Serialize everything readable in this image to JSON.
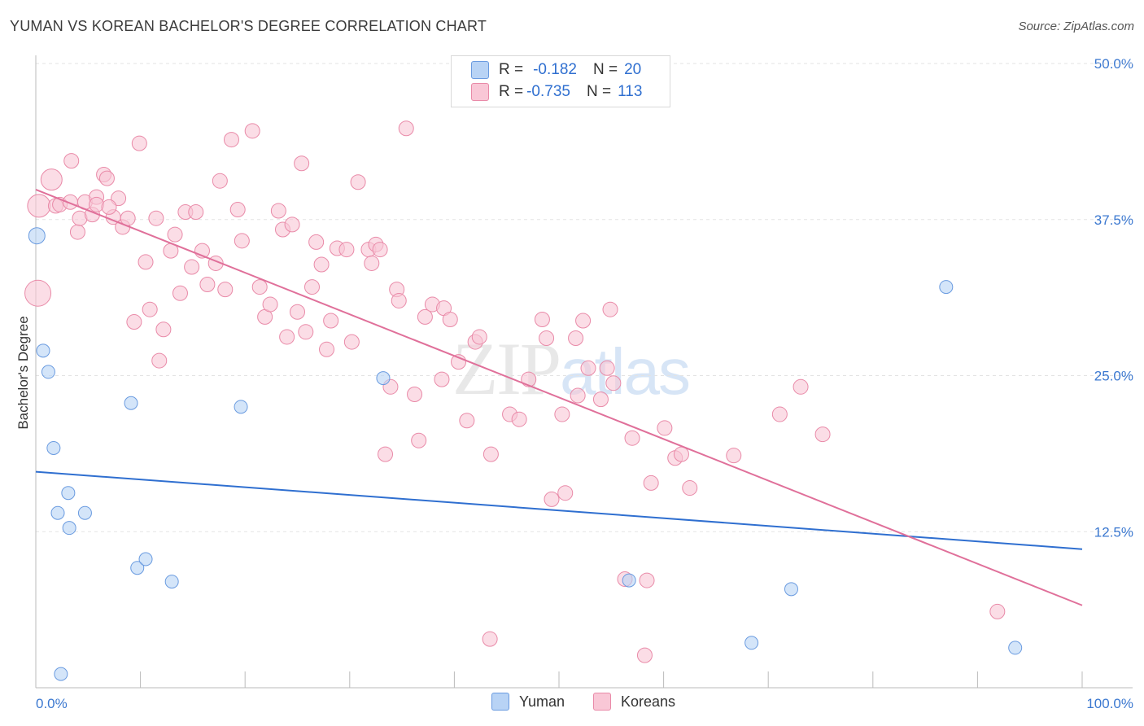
{
  "title": "YUMAN VS KOREAN BACHELOR'S DEGREE CORRELATION CHART",
  "source": "Source: ZipAtlas.com",
  "watermark": {
    "zip": "ZIP",
    "atlas": "atlas"
  },
  "legend_top": [
    {
      "r_label": "R =",
      "r_value": "-0.182",
      "n_label": "N =",
      "n_value": "20",
      "color": "#b8d3f5",
      "border": "#6a9be0"
    },
    {
      "r_label": "R =",
      "r_value": "-0.735",
      "n_label": "N =",
      "n_value": "113",
      "color": "#f9c7d6",
      "border": "#e98aa8"
    }
  ],
  "legend_bottom": [
    {
      "label": "Yuman",
      "color": "#b8d3f5",
      "border": "#6a9be0"
    },
    {
      "label": "Koreans",
      "color": "#f9c7d6",
      "border": "#e98aa8"
    }
  ],
  "chart_data": {
    "type": "scatter",
    "title": "YUMAN VS KOREAN BACHELOR'S DEGREE CORRELATION CHART",
    "xlabel": "",
    "ylabel": "Bachelor's Degree",
    "xlim": [
      0,
      100
    ],
    "ylim": [
      0,
      50
    ],
    "x_tick_labels": [
      "0.0%",
      "100.0%"
    ],
    "y_ticks": [
      12.5,
      25.0,
      37.5,
      50.0
    ],
    "y_tick_labels": [
      "12.5%",
      "25.0%",
      "37.5%",
      "50.0%"
    ],
    "grid": true,
    "legend_position": "top-center",
    "series": [
      {
        "name": "Yuman",
        "color": "#6a9be0",
        "fill": "#b8d3f5",
        "trend": {
          "x": [
            0,
            100
          ],
          "y": [
            17.3,
            11.1
          ],
          "color": "#2f6fd0"
        },
        "points": [
          [
            0.1,
            36.2,
            10
          ],
          [
            0.7,
            27.0,
            8
          ],
          [
            1.2,
            25.3,
            8
          ],
          [
            1.7,
            19.2,
            8
          ],
          [
            2.1,
            14.0,
            8
          ],
          [
            3.1,
            15.6,
            8
          ],
          [
            3.2,
            12.8,
            8
          ],
          [
            4.7,
            14.0,
            8
          ],
          [
            9.1,
            22.8,
            8
          ],
          [
            9.7,
            9.6,
            8
          ],
          [
            10.5,
            10.3,
            8
          ],
          [
            13.0,
            8.5,
            8
          ],
          [
            19.6,
            22.5,
            8
          ],
          [
            33.2,
            24.8,
            8
          ],
          [
            56.7,
            8.6,
            8
          ],
          [
            68.4,
            3.6,
            8
          ],
          [
            72.2,
            7.9,
            8
          ],
          [
            87.0,
            32.1,
            8
          ],
          [
            93.6,
            3.2,
            8
          ],
          [
            2.4,
            1.1,
            8
          ]
        ]
      },
      {
        "name": "Koreans",
        "color": "#e98aa8",
        "fill": "#f9c7d6",
        "trend": {
          "x": [
            0,
            100
          ],
          "y": [
            39.9,
            6.6
          ],
          "color": "#e0709a"
        },
        "points": [
          [
            0.3,
            38.6,
            14
          ],
          [
            1.5,
            40.7,
            13
          ],
          [
            0.2,
            31.6,
            16
          ],
          [
            1.9,
            38.6,
            9
          ],
          [
            2.3,
            38.7,
            9
          ],
          [
            3.3,
            38.9,
            9
          ],
          [
            3.4,
            42.2,
            9
          ],
          [
            4.0,
            36.5,
            9
          ],
          [
            4.2,
            37.6,
            9
          ],
          [
            4.7,
            38.9,
            9
          ],
          [
            5.4,
            37.9,
            9
          ],
          [
            5.8,
            39.3,
            9
          ],
          [
            6.5,
            41.1,
            9
          ],
          [
            6.8,
            40.8,
            9
          ],
          [
            7.4,
            37.7,
            9
          ],
          [
            7.9,
            39.2,
            9
          ],
          [
            8.3,
            36.9,
            9
          ],
          [
            8.8,
            37.6,
            9
          ],
          [
            9.4,
            29.3,
            9
          ],
          [
            9.9,
            43.6,
            9
          ],
          [
            10.5,
            34.1,
            9
          ],
          [
            10.9,
            30.3,
            9
          ],
          [
            11.5,
            37.6,
            9
          ],
          [
            11.8,
            26.2,
            9
          ],
          [
            12.2,
            28.7,
            9
          ],
          [
            12.9,
            35.0,
            9
          ],
          [
            13.3,
            36.3,
            9
          ],
          [
            13.8,
            31.6,
            9
          ],
          [
            14.3,
            38.1,
            9
          ],
          [
            14.9,
            33.7,
            9
          ],
          [
            15.3,
            38.1,
            9
          ],
          [
            15.9,
            35.0,
            9
          ],
          [
            16.4,
            32.3,
            9
          ],
          [
            17.2,
            34.0,
            9
          ],
          [
            17.6,
            40.6,
            9
          ],
          [
            18.1,
            31.9,
            9
          ],
          [
            18.7,
            43.9,
            9
          ],
          [
            19.3,
            38.3,
            9
          ],
          [
            19.7,
            35.8,
            9
          ],
          [
            20.7,
            44.6,
            9
          ],
          [
            21.4,
            32.1,
            9
          ],
          [
            21.9,
            29.7,
            9
          ],
          [
            22.4,
            30.7,
            9
          ],
          [
            23.2,
            38.2,
            9
          ],
          [
            23.6,
            36.7,
            9
          ],
          [
            24.0,
            28.1,
            9
          ],
          [
            24.5,
            37.1,
            9
          ],
          [
            25.0,
            30.1,
            9
          ],
          [
            25.4,
            42.0,
            9
          ],
          [
            25.8,
            28.5,
            9
          ],
          [
            26.4,
            32.1,
            9
          ],
          [
            26.8,
            35.7,
            9
          ],
          [
            27.3,
            33.9,
            9
          ],
          [
            27.8,
            27.1,
            9
          ],
          [
            28.2,
            29.4,
            9
          ],
          [
            28.8,
            35.2,
            9
          ],
          [
            29.7,
            35.1,
            9
          ],
          [
            30.2,
            27.7,
            9
          ],
          [
            30.8,
            40.5,
            9
          ],
          [
            31.8,
            35.1,
            9
          ],
          [
            32.1,
            34.0,
            9
          ],
          [
            32.5,
            35.5,
            9
          ],
          [
            32.9,
            35.1,
            9
          ],
          [
            33.4,
            18.7,
            9
          ],
          [
            33.9,
            24.1,
            9
          ],
          [
            34.5,
            31.9,
            9
          ],
          [
            34.7,
            31.0,
            9
          ],
          [
            35.4,
            44.8,
            9
          ],
          [
            36.2,
            23.5,
            9
          ],
          [
            36.6,
            19.8,
            9
          ],
          [
            37.2,
            29.7,
            9
          ],
          [
            37.9,
            30.7,
            9
          ],
          [
            38.8,
            24.7,
            9
          ],
          [
            39.0,
            30.4,
            9
          ],
          [
            39.6,
            29.5,
            9
          ],
          [
            40.4,
            26.1,
            9
          ],
          [
            41.2,
            21.4,
            9
          ],
          [
            42.0,
            27.7,
            9
          ],
          [
            42.4,
            28.1,
            9
          ],
          [
            43.5,
            18.7,
            9
          ],
          [
            43.4,
            3.9,
            9
          ],
          [
            45.3,
            21.9,
            9
          ],
          [
            46.2,
            21.5,
            9
          ],
          [
            47.1,
            24.7,
            9
          ],
          [
            48.4,
            29.5,
            9
          ],
          [
            48.8,
            28.0,
            9
          ],
          [
            49.3,
            15.1,
            9
          ],
          [
            50.3,
            21.9,
            9
          ],
          [
            50.6,
            15.6,
            9
          ],
          [
            51.6,
            28.0,
            9
          ],
          [
            51.8,
            23.4,
            9
          ],
          [
            52.3,
            29.4,
            9
          ],
          [
            52.8,
            25.6,
            9
          ],
          [
            54.0,
            23.1,
            9
          ],
          [
            54.6,
            25.6,
            9
          ],
          [
            54.9,
            30.3,
            9
          ],
          [
            55.2,
            24.4,
            9
          ],
          [
            56.3,
            8.7,
            9
          ],
          [
            57.0,
            20.0,
            9
          ],
          [
            58.2,
            2.6,
            9
          ],
          [
            58.4,
            8.6,
            9
          ],
          [
            58.8,
            16.4,
            9
          ],
          [
            60.1,
            20.8,
            9
          ],
          [
            61.1,
            18.4,
            9
          ],
          [
            61.7,
            18.7,
            9
          ],
          [
            62.5,
            16.0,
            9
          ],
          [
            66.7,
            18.6,
            9
          ],
          [
            71.1,
            21.9,
            9
          ],
          [
            73.1,
            24.1,
            9
          ],
          [
            75.2,
            20.3,
            9
          ],
          [
            91.9,
            6.1,
            9
          ],
          [
            5.8,
            38.7,
            9
          ],
          [
            7.0,
            38.5,
            9
          ]
        ]
      }
    ]
  }
}
